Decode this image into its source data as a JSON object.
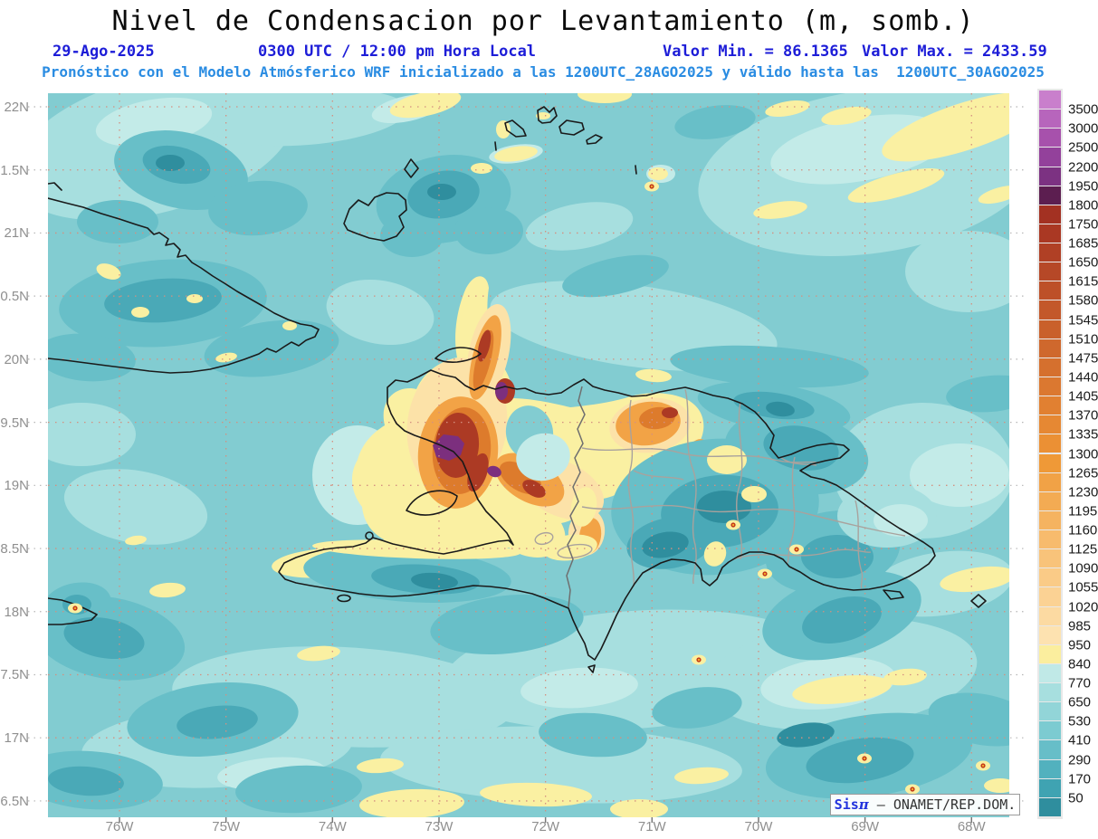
{
  "header": {
    "title": "Nivel de Condensacion por Levantamiento (m, somb.)",
    "date": "29-Ago-2025",
    "time_label": "0300 UTC / 12:00 pm Hora Local",
    "min_label": "Valor Min. = 86.1365",
    "max_label": "Valor Max. = 2433.59",
    "model_line": "Pronóstico con el Modelo Atmósferico WRF inicializado a las 1200UTC_28AGO2025 y válido hasta las  1200UTC_30AGO2025"
  },
  "axes": {
    "lat_labels": [
      "22N",
      "1.5N",
      "21N",
      "0.5N",
      "20N",
      "9.5N",
      "19N",
      "8.5N",
      "18N",
      "7.5N",
      "17N",
      "6.5N"
    ],
    "lon_labels": [
      "76W",
      "75W",
      "74W",
      "73W",
      "72W",
      "71W",
      "70W",
      "69W",
      "68W"
    ]
  },
  "colorbar": {
    "unit": "m",
    "labels": [
      "3500",
      "3000",
      "2500",
      "2200",
      "1950",
      "1800",
      "1750",
      "1685",
      "1650",
      "1615",
      "1580",
      "1545",
      "1510",
      "1475",
      "1440",
      "1405",
      "1370",
      "1335",
      "1300",
      "1265",
      "1230",
      "1195",
      "1160",
      "1125",
      "1090",
      "1055",
      "1020",
      "985",
      "950",
      "840",
      "770",
      "650",
      "530",
      "410",
      "290",
      "170",
      "50"
    ],
    "colors": [
      "#C97FCC",
      "#B765BC",
      "#A751AC",
      "#93419B",
      "#7C3282",
      "#5C1E50",
      "#A33122",
      "#AA3823",
      "#B04025",
      "#B64827",
      "#BD5028",
      "#C3582A",
      "#C9602B",
      "#CF682D",
      "#D5702E",
      "#DB7830",
      "#E18031",
      "#E68833",
      "#EB9034",
      "#EF9937",
      "#F1A246",
      "#F3AB53",
      "#F5B360",
      "#F7BB6D",
      "#F8C37A",
      "#FACB87",
      "#FBD294",
      "#FCDAA2",
      "#FDE2B0",
      "#FBEE9E",
      "#C0E9E7",
      "#A7DFDF",
      "#92D5D8",
      "#7CCBD1",
      "#67BEC8",
      "#52B1BE",
      "#3FA3B2",
      "#2F8E9E"
    ]
  },
  "watermark": {
    "app": "Sis",
    "pi": "π",
    "sep": " – ",
    "org": "ONAMET/REP.DOM."
  },
  "map_colors": {
    "sea_base": "#82CCD1",
    "sea_light": "#A7DFDF",
    "sea_pale": "#C3EBE8",
    "sea_dark": "#68BFC8",
    "sea_darker": "#4AA9B7",
    "sea_darkest": "#2F8E9E",
    "yellow": "#FAF0A2",
    "cream": "#FCE2A8",
    "orange_light": "#F2A346",
    "orange": "#DD7B2C",
    "red_dark": "#AC3A24",
    "purple": "#7C2F7E",
    "coast": "#1A1A1A",
    "border_intl": "#6F6F6F",
    "border_prov": "#A9A29D",
    "grid": "#D49080",
    "grid_margin": "#B5B5B5",
    "tick": "#777777",
    "hot_dot": "#C23A1C",
    "hot_dot_core": "#F7B32B"
  }
}
